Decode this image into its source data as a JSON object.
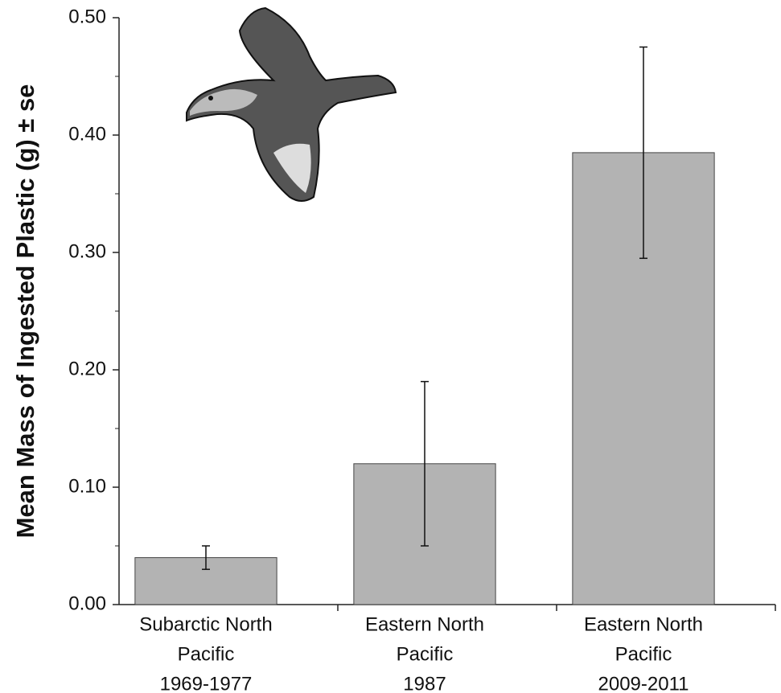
{
  "chart_data": {
    "type": "bar",
    "ylabel": "Mean Mass of Ingested Plastic (g) ± se",
    "categories": [
      [
        "Subarctic North",
        "Pacific",
        "1969-1977"
      ],
      [
        "Eastern North",
        "Pacific",
        "1987"
      ],
      [
        "Eastern North",
        "Pacific",
        "2009-2011"
      ]
    ],
    "values": [
      0.04,
      0.12,
      0.385
    ],
    "errors": [
      0.01,
      0.07,
      0.09
    ],
    "color": "#b3b3b3",
    "ylim": [
      0,
      0.5
    ],
    "yticks": [
      {
        "value": 0,
        "label": "0.00"
      },
      {
        "value": 0.1,
        "label": "0.10"
      },
      {
        "value": 0.2,
        "label": "0.20"
      },
      {
        "value": 0.3,
        "label": "0.30"
      },
      {
        "value": 0.4,
        "label": "0.40"
      },
      {
        "value": 0.5,
        "label": "0.50"
      }
    ],
    "yminor_ticks": [
      0.05,
      0.15,
      0.25,
      0.35,
      0.45
    ]
  }
}
